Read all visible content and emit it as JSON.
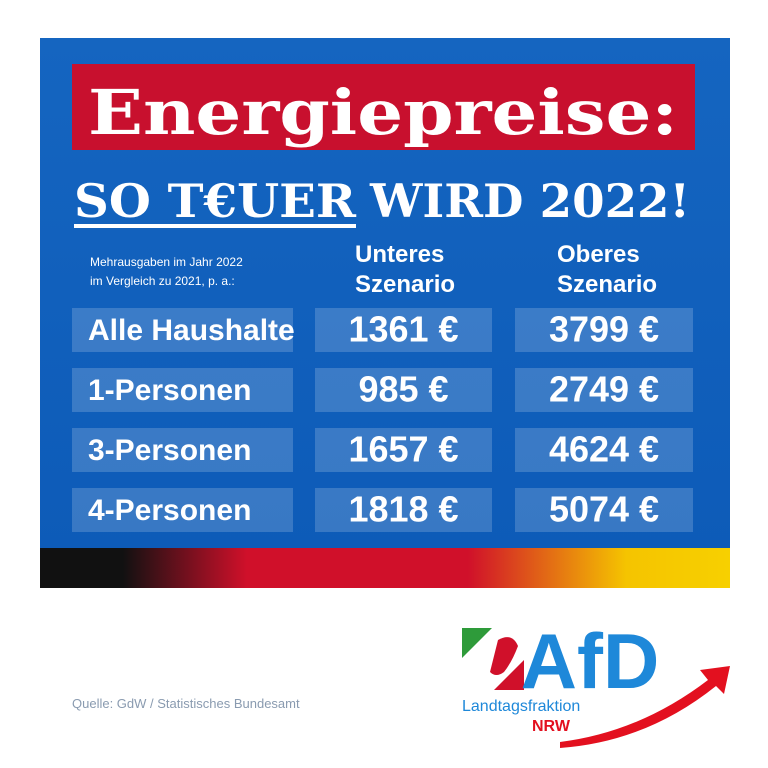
{
  "header": {
    "title": "Energiepreise:",
    "subtitle_underlined": "SO T€UER",
    "subtitle_rest": "WIRD 2022!"
  },
  "table": {
    "note": [
      "Mehrausgaben im Jahr 2022",
      "im Vergleich zu 2021, p. a.:"
    ],
    "columns": [
      [
        "Unteres",
        "Szenario"
      ],
      [
        "Oberes",
        "Szenario"
      ]
    ],
    "rows": [
      [
        "Alle Haushalte",
        "1361 €",
        "3799 €"
      ],
      [
        "1-Personen",
        "985 €",
        "2749 €"
      ],
      [
        "3-Personen",
        "1657 €",
        "4624 €"
      ],
      [
        "4-Personen",
        "1818 €",
        "5074 €"
      ]
    ]
  },
  "footer": {
    "source": "Quelle: GdW / Statistisches Bundesamt",
    "logo": {
      "name": "AfD",
      "line1": "Landtagsfraktion",
      "line2": "NRW"
    }
  }
}
